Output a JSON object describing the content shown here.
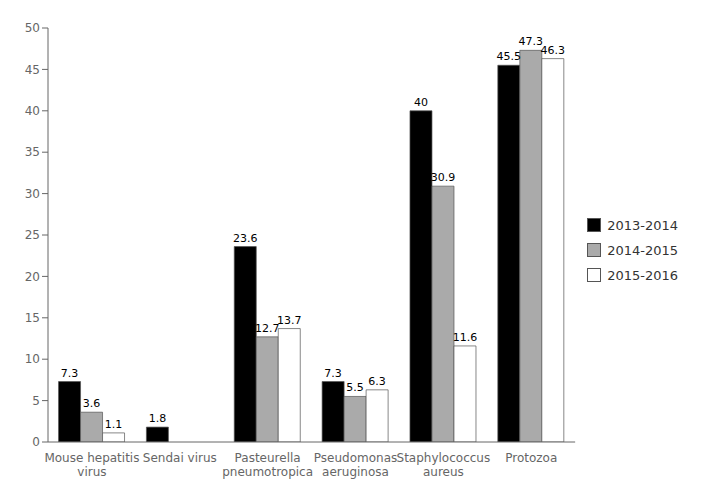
{
  "chart_data": {
    "type": "bar",
    "categories": [
      "Mouse hepatitis\nvirus",
      "Sendai virus",
      "Pasteurella\npneumotropica",
      "Pseudomonas\naeruginosa",
      "Staphylococcus\naureus",
      "Protozoa"
    ],
    "series": [
      {
        "name": "2013-2014",
        "color": "#000000",
        "values": [
          7.3,
          1.8,
          23.6,
          7.3,
          40,
          45.5
        ]
      },
      {
        "name": "2014-2015",
        "color": "#aaaaaa",
        "values": [
          3.6,
          0,
          12.7,
          5.5,
          30.9,
          47.3
        ]
      },
      {
        "name": "2015-2016",
        "color": "#ffffff",
        "values": [
          1.1,
          0,
          13.7,
          6.3,
          11.6,
          46.3
        ]
      }
    ],
    "ylim": [
      0,
      50
    ],
    "yticks": [
      0,
      5,
      10,
      15,
      20,
      25,
      30,
      35,
      40,
      45,
      50
    ],
    "grid": false,
    "legend": "right",
    "data_labels": true
  }
}
